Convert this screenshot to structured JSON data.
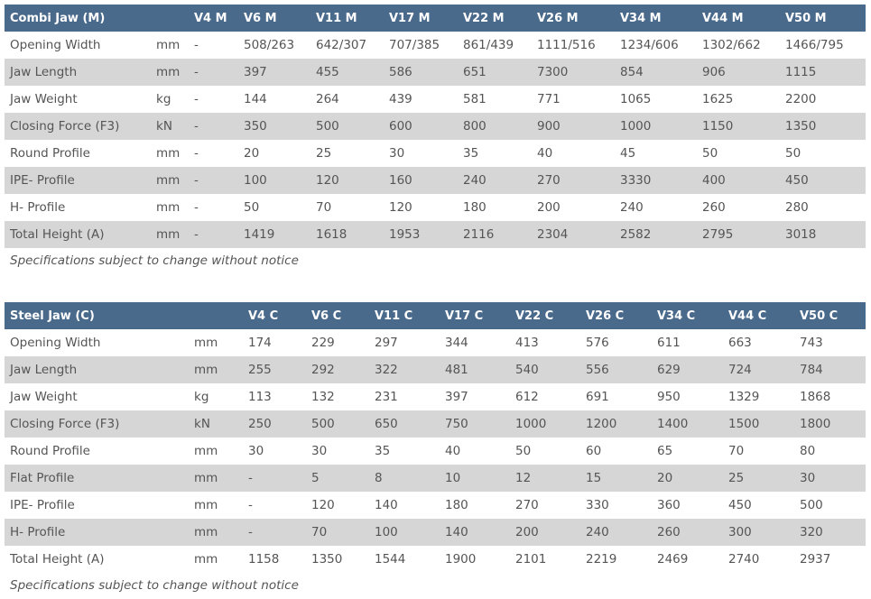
{
  "combi": {
    "columns": [
      "Combi Jaw (M)",
      "",
      "V4 M",
      "V6 M",
      "V11 M",
      "V17 M",
      "V22 M",
      "V26 M",
      "V34 M",
      "V44 M",
      "V50 M"
    ],
    "rows": [
      [
        "Opening Width",
        "mm",
        "-",
        "508/263",
        "642/307",
        "707/385",
        "861/439",
        "1111/516",
        "1234/606",
        "1302/662",
        "1466/795"
      ],
      [
        "Jaw Length",
        "mm",
        "-",
        "397",
        "455",
        "586",
        "651",
        "7300",
        "854",
        "906",
        "1115"
      ],
      [
        "Jaw Weight",
        "kg",
        "-",
        "144",
        "264",
        "439",
        "581",
        "771",
        "1065",
        "1625",
        "2200"
      ],
      [
        "Closing Force (F3)",
        "kN",
        "-",
        "350",
        "500",
        "600",
        "800",
        "900",
        "1000",
        "1150",
        "1350"
      ],
      [
        "Round Profile",
        "mm",
        "-",
        "20",
        "25",
        "30",
        "35",
        "40",
        "45",
        "50",
        "50"
      ],
      [
        "IPE- Profile",
        "mm",
        "-",
        "100",
        "120",
        "160",
        "240",
        "270",
        "3330",
        "400",
        "450"
      ],
      [
        "H- Profile",
        "mm",
        "-",
        "50",
        "70",
        "120",
        "180",
        "200",
        "240",
        "260",
        "280"
      ],
      [
        "Total Height (A)",
        "mm",
        "-",
        "1419",
        "1618",
        "1953",
        "2116",
        "2304",
        "2582",
        "2795",
        "3018"
      ]
    ],
    "note": "Specifications subject to change without notice"
  },
  "steel": {
    "columns": [
      "Steel Jaw (C)",
      "",
      "V4 C",
      "V6 C",
      "V11 C",
      "V17 C",
      "V22 C",
      "V26 C",
      "V34 C",
      "V44 C",
      "V50 C"
    ],
    "rows": [
      [
        "Opening Width",
        "mm",
        "174",
        "229",
        "297",
        "344",
        "413",
        "576",
        "611",
        "663",
        "743"
      ],
      [
        "Jaw Length",
        "mm",
        "255",
        "292",
        "322",
        "481",
        "540",
        "556",
        "629",
        "724",
        "784"
      ],
      [
        "Jaw Weight",
        "kg",
        "113",
        "132",
        "231",
        "397",
        "612",
        "691",
        "950",
        "1329",
        "1868"
      ],
      [
        "Closing Force (F3)",
        "kN",
        "250",
        "500",
        "650",
        "750",
        "1000",
        "1200",
        "1400",
        "1500",
        "1800"
      ],
      [
        "Round Profile",
        "mm",
        "30",
        "30",
        "35",
        "40",
        "50",
        "60",
        "65",
        "70",
        "80"
      ],
      [
        "Flat Profile",
        "mm",
        "-",
        "5",
        "8",
        "10",
        "12",
        "15",
        "20",
        "25",
        "30"
      ],
      [
        "IPE- Profile",
        "mm",
        "-",
        "120",
        "140",
        "180",
        "270",
        "330",
        "360",
        "450",
        "500"
      ],
      [
        "H- Profile",
        "mm",
        "-",
        "70",
        "100",
        "140",
        "200",
        "240",
        "260",
        "300",
        "320"
      ],
      [
        "Total Height (A)",
        "mm",
        "1158",
        "1350",
        "1544",
        "1900",
        "2101",
        "2219",
        "2469",
        "2740",
        "2937"
      ]
    ],
    "note": "Specifications subject to change without notice"
  }
}
